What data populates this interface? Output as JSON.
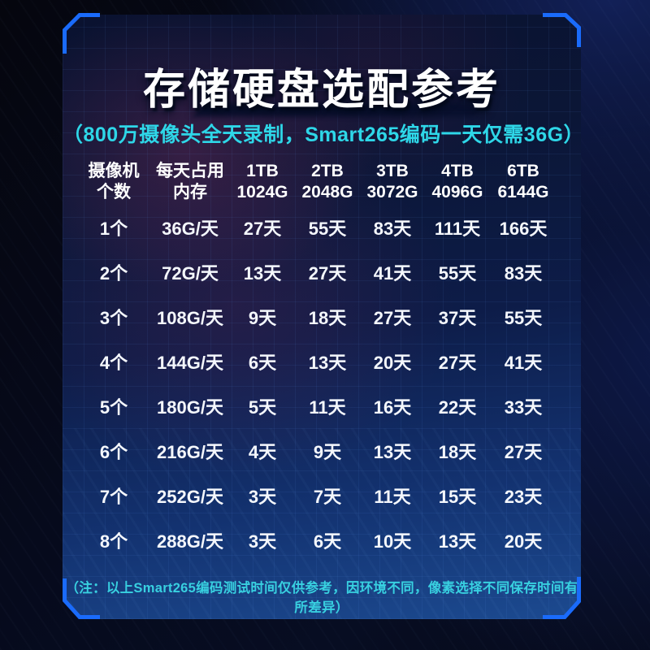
{
  "chart_data": {
    "type": "table",
    "title": "存储硬盘选配参考",
    "subtitle": "（800万摄像头全天录制，Smart265编码一天仅需36G）",
    "note": "（注：以上Smart265编码测试时间仅供参考，因环境不同，像素选择不同保存时间有所差异）",
    "columns": [
      [
        "摄像机",
        "个数"
      ],
      [
        "每天占用",
        "内存"
      ],
      [
        "1TB",
        "1024G"
      ],
      [
        "2TB",
        "2048G"
      ],
      [
        "3TB",
        "3072G"
      ],
      [
        "4TB",
        "4096G"
      ],
      [
        "6TB",
        "6144G"
      ]
    ],
    "rows": [
      [
        "1个",
        "36G/天",
        "27天",
        "55天",
        "83天",
        "111天",
        "166天"
      ],
      [
        "2个",
        "72G/天",
        "13天",
        "27天",
        "41天",
        "55天",
        "83天"
      ],
      [
        "3个",
        "108G/天",
        "9天",
        "18天",
        "27天",
        "37天",
        "55天"
      ],
      [
        "4个",
        "144G/天",
        "6天",
        "13天",
        "20天",
        "27天",
        "41天"
      ],
      [
        "5个",
        "180G/天",
        "5天",
        "11天",
        "16天",
        "22天",
        "33天"
      ],
      [
        "6个",
        "216G/天",
        "4天",
        "9天",
        "13天",
        "18天",
        "27天"
      ],
      [
        "7个",
        "252G/天",
        "3天",
        "7天",
        "11天",
        "15天",
        "23天"
      ],
      [
        "8个",
        "288G/天",
        "3天",
        "6天",
        "10天",
        "13天",
        "20天"
      ]
    ]
  },
  "colors": {
    "bracket_blue": "#1a6bfb",
    "subtitle_cyan": "#2ed7e8",
    "note_cyan": "#38d0e0",
    "title_white": "#ffffff",
    "panel_bottom_blue": "#1c4a90"
  }
}
